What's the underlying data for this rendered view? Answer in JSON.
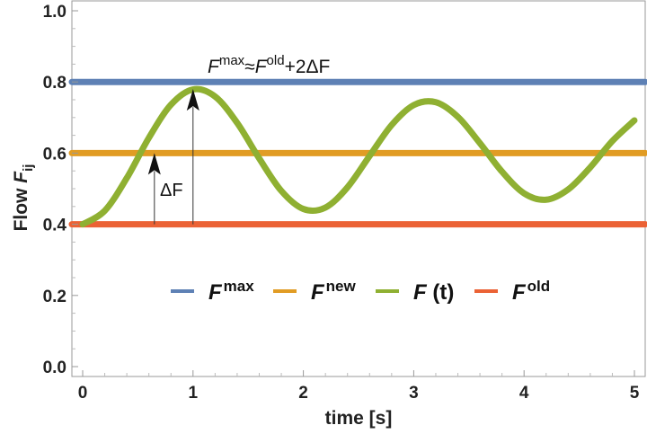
{
  "chart_data": {
    "type": "line",
    "title": "",
    "xlabel": "time [s]",
    "ylabel": {
      "base": "Flow ",
      "italic": "F",
      "sub": "ij"
    },
    "xlim": [
      0,
      5
    ],
    "ylim": [
      0,
      1
    ],
    "xticks": [
      "0",
      "1",
      "2",
      "3",
      "4",
      "5"
    ],
    "yticks": [
      "0.0",
      "0.2",
      "0.4",
      "0.6",
      "0.8",
      "1.0"
    ],
    "grid": false,
    "legend_position": "lower-center",
    "series": [
      {
        "name": "F^max",
        "legend": {
          "base": "F",
          "sup": "max"
        },
        "color": "#5e81b5",
        "x": [
          0,
          5
        ],
        "y": [
          0.8,
          0.8
        ]
      },
      {
        "name": "F^new",
        "legend": {
          "base": "F",
          "sup": "new"
        },
        "color": "#e19c24",
        "x": [
          0,
          5
        ],
        "y": [
          0.6,
          0.6
        ]
      },
      {
        "name": "F(t)",
        "legend": {
          "base": "F",
          "sup": "",
          "rest": " (t)"
        },
        "color": "#8fb032",
        "x": [
          0,
          0.2,
          0.4,
          0.6,
          0.8,
          1.0,
          1.2,
          1.4,
          1.6,
          1.8,
          2.0,
          2.2,
          2.4,
          2.6,
          2.8,
          3.0,
          3.2,
          3.4,
          3.6,
          3.8,
          4.0,
          4.2,
          4.4,
          4.6,
          4.8,
          5.0
        ],
        "y": [
          0.4,
          0.438,
          0.53,
          0.643,
          0.736,
          0.779,
          0.759,
          0.685,
          0.585,
          0.494,
          0.443,
          0.447,
          0.504,
          0.592,
          0.679,
          0.735,
          0.743,
          0.702,
          0.628,
          0.548,
          0.487,
          0.469,
          0.498,
          0.56,
          0.634,
          0.692
        ]
      },
      {
        "name": "F^old",
        "legend": {
          "base": "F",
          "sup": "old"
        },
        "color": "#eb6235",
        "x": [
          0,
          5
        ],
        "y": [
          0.4,
          0.4
        ]
      }
    ],
    "annotations": [
      {
        "label": "ΔF",
        "arrow_x": 0.65,
        "from_y": 0.4,
        "to_y": 0.6
      },
      {
        "label": {
          "parts": [
            [
              "F",
              "max"
            ],
            [
              "≈F",
              "old"
            ],
            [
              "+2ΔF",
              ""
            ]
          ]
        },
        "arrow_x": 1.0,
        "from_y": 0.4,
        "to_y": 0.78
      }
    ]
  }
}
